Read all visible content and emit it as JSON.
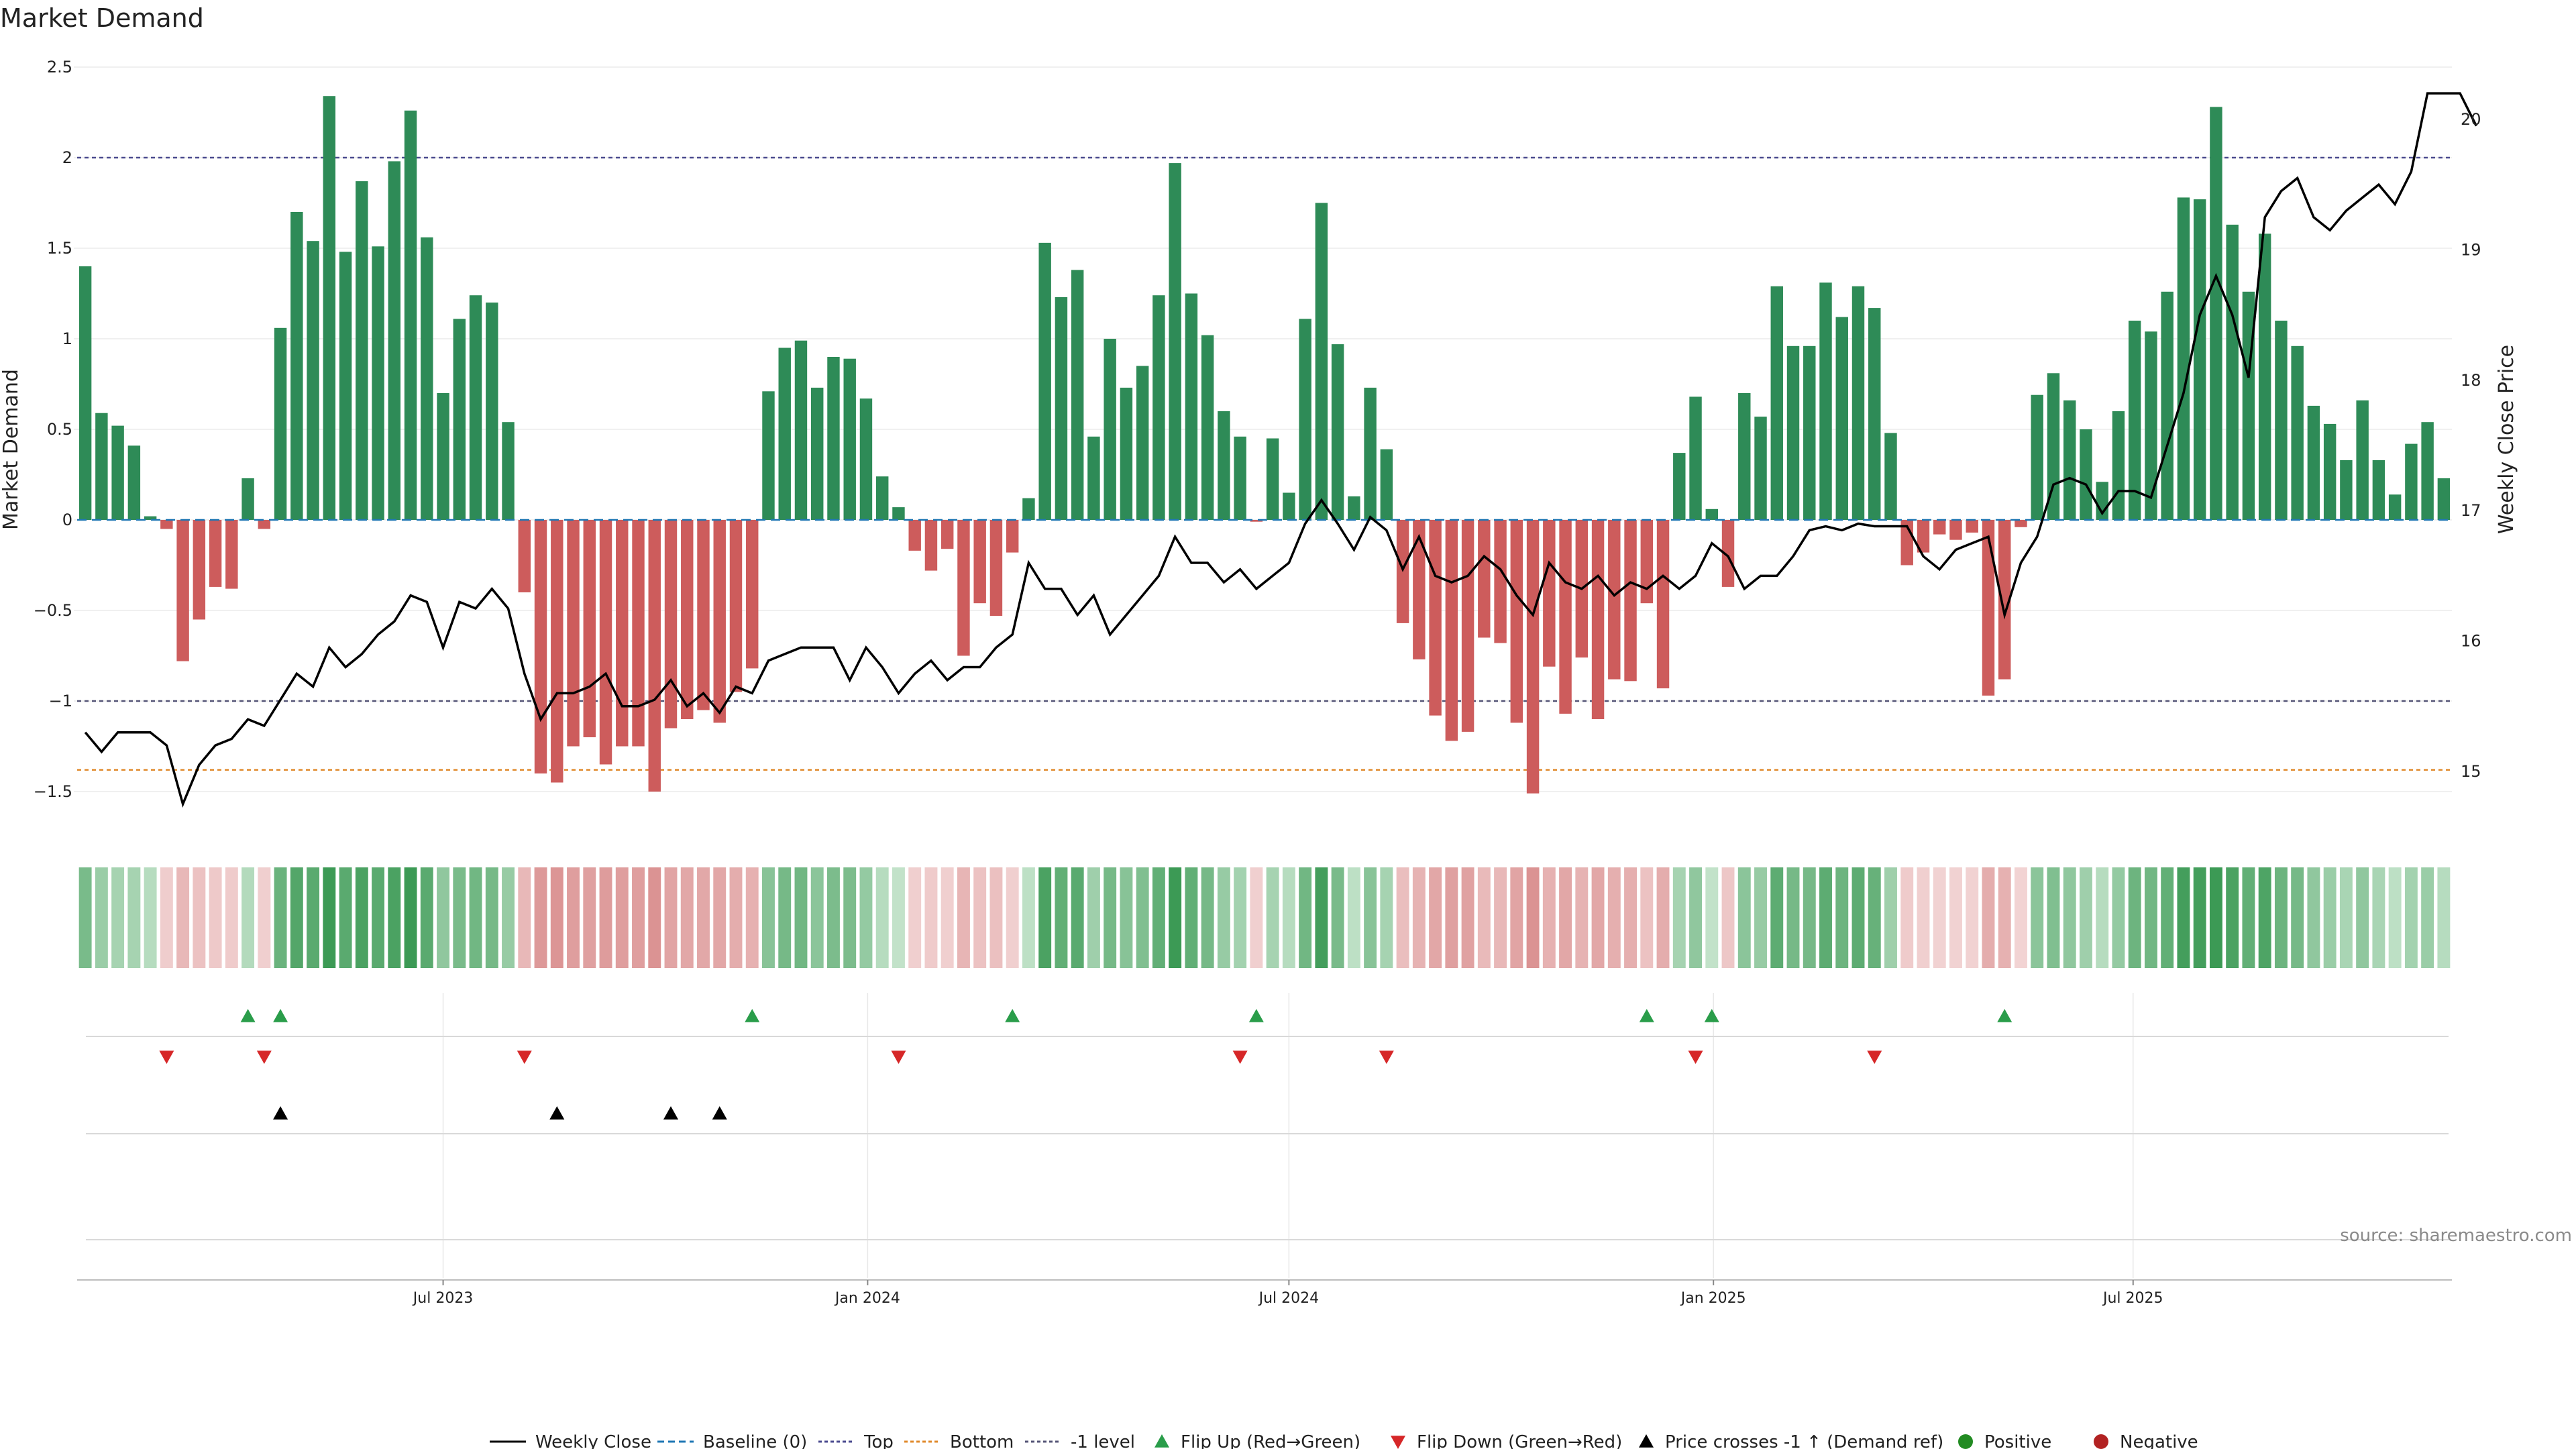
{
  "chart_data": {
    "type": "bar",
    "title": "Market Demand",
    "ylabel": "Market Demand",
    "y2label": "Weekly Close Price",
    "ylim": [
      -1.7,
      2.5
    ],
    "y2lim": [
      14.55,
      20.5
    ],
    "yticks": [
      2.5,
      2,
      1.5,
      1,
      0.5,
      0,
      -0.5,
      -1,
      -1.5
    ],
    "ytick_labels": [
      "2.5",
      "2",
      "1.5",
      "1",
      "0.5",
      "0",
      "−0.5",
      "−1",
      "−1.5"
    ],
    "y2ticks": [
      20,
      19,
      18,
      17,
      16,
      15
    ],
    "xticks": [
      {
        "label": "Jul 2023",
        "index": 22
      },
      {
        "label": "Jan 2024",
        "index": 48.1
      },
      {
        "label": "Jul 2024",
        "index": 74
      },
      {
        "label": "Jan 2025",
        "index": 100.1
      },
      {
        "label": "Jul 2025",
        "index": 125.9
      }
    ],
    "reference_lines": {
      "top": 2,
      "bottom": -1.38,
      "minus_one": -1,
      "baseline": 0
    },
    "colors": {
      "positive": "#2e8b57",
      "negative": "#cd5c5c",
      "close": "#000000",
      "top": "#4b4b8f",
      "bottom": "#e08a2c",
      "level": "#555577",
      "baseline": "#1f77b4",
      "flip_up": "#2a9d4a",
      "flip_down": "#d62728",
      "cross": "#000000"
    },
    "series": [
      {
        "name": "Market Demand",
        "values": [
          1.4,
          0.59,
          0.52,
          0.41,
          0.02,
          -0.05,
          -0.78,
          -0.55,
          -0.37,
          -0.38,
          0.23,
          -0.05,
          1.06,
          1.7,
          1.54,
          2.34,
          1.48,
          1.87,
          1.51,
          1.98,
          2.26,
          1.56,
          0.7,
          1.11,
          1.24,
          1.2,
          0.54,
          -0.4,
          -1.4,
          -1.45,
          -1.25,
          -1.2,
          -1.35,
          -1.25,
          -1.25,
          -1.5,
          -1.15,
          -1.1,
          -1.05,
          -1.12,
          -0.95,
          -0.82,
          0.71,
          0.95,
          0.99,
          0.73,
          0.9,
          0.89,
          0.67,
          0.24,
          0.07,
          -0.17,
          -0.28,
          -0.16,
          -0.75,
          -0.46,
          -0.53,
          -0.18,
          0.12,
          1.53,
          1.23,
          1.38,
          0.46,
          1.0,
          0.73,
          0.85,
          1.24,
          1.97,
          1.25,
          1.02,
          0.6,
          0.46,
          -0.01,
          0.45,
          0.15,
          1.11,
          1.75,
          0.97,
          0.13,
          0.73,
          0.39,
          -0.57,
          -0.77,
          -1.08,
          -1.22,
          -1.17,
          -0.65,
          -0.68,
          -1.12,
          -1.51,
          -0.81,
          -1.07,
          -0.76,
          -1.1,
          -0.88,
          -0.89,
          -0.46,
          -0.93,
          0.37,
          0.68,
          0.06,
          -0.37,
          0.7,
          0.57,
          1.29,
          0.96,
          0.96,
          1.31,
          1.12,
          1.29,
          1.17,
          0.48,
          -0.25,
          -0.18,
          -0.08,
          -0.11,
          -0.07,
          -0.97,
          -0.88,
          -0.04,
          0.69,
          0.81,
          0.66,
          0.5,
          0.21,
          0.6,
          1.1,
          1.04,
          1.26,
          1.78,
          1.77,
          2.28,
          1.63,
          1.26,
          1.58,
          1.1,
          0.96,
          0.63,
          0.53,
          0.33,
          0.66,
          0.33,
          0.14,
          0.42,
          0.54,
          0.23
        ]
      },
      {
        "name": "Weekly Close",
        "values": [
          15.3,
          15.15,
          15.3,
          15.3,
          15.3,
          15.2,
          14.75,
          15.05,
          15.2,
          15.25,
          15.4,
          15.35,
          15.55,
          15.75,
          15.65,
          15.95,
          15.8,
          15.9,
          16.05,
          16.15,
          16.35,
          16.3,
          15.95,
          16.3,
          16.25,
          16.4,
          16.25,
          15.75,
          15.4,
          15.6,
          15.6,
          15.65,
          15.75,
          15.5,
          15.5,
          15.55,
          15.7,
          15.5,
          15.6,
          15.45,
          15.65,
          15.6,
          15.85,
          15.9,
          15.95,
          15.95,
          15.95,
          15.7,
          15.95,
          15.8,
          15.6,
          15.75,
          15.85,
          15.7,
          15.8,
          15.8,
          15.95,
          16.05,
          16.6,
          16.4,
          16.4,
          16.2,
          16.35,
          16.05,
          16.2,
          16.35,
          16.5,
          16.8,
          16.6,
          16.6,
          16.45,
          16.55,
          16.4,
          16.5,
          16.6,
          16.9,
          17.08,
          16.9,
          16.7,
          16.95,
          16.85,
          16.55,
          16.8,
          16.5,
          16.45,
          16.5,
          16.65,
          16.55,
          16.35,
          16.2,
          16.6,
          16.45,
          16.4,
          16.5,
          16.35,
          16.45,
          16.4,
          16.5,
          16.4,
          16.5,
          16.75,
          16.65,
          16.4,
          16.5,
          16.5,
          16.65,
          16.85,
          16.88,
          16.85,
          16.9,
          16.88,
          16.88,
          16.88,
          16.65,
          16.55,
          16.7,
          16.75,
          16.8,
          16.2,
          16.6,
          16.8,
          17.2,
          17.25,
          17.2,
          16.98,
          17.15,
          17.15,
          17.1,
          17.5,
          17.9,
          18.5,
          18.8,
          18.5,
          18.02,
          19.25,
          19.45,
          19.55,
          19.25,
          19.15,
          19.3,
          19.4,
          19.5,
          19.35,
          19.6,
          20.2,
          20.2,
          20.2,
          19.95
        ]
      }
    ],
    "heat_strip": [
      0.6,
      0.38,
      0.3,
      0.3,
      0.2,
      0.18,
      0.42,
      0.3,
      0.22,
      0.2,
      0.22,
      0.15,
      0.7,
      0.85,
      0.8,
      1.0,
      0.8,
      0.9,
      0.8,
      0.9,
      1.0,
      0.8,
      0.45,
      0.6,
      0.65,
      0.62,
      0.4,
      0.42,
      0.78,
      0.82,
      0.72,
      0.7,
      0.75,
      0.72,
      0.72,
      0.85,
      0.65,
      0.62,
      0.6,
      0.62,
      0.55,
      0.5,
      0.5,
      0.62,
      0.65,
      0.48,
      0.58,
      0.58,
      0.42,
      0.2,
      0.12,
      0.15,
      0.2,
      0.15,
      0.45,
      0.3,
      0.32,
      0.15,
      0.15,
      0.9,
      0.75,
      0.8,
      0.35,
      0.62,
      0.5,
      0.55,
      0.75,
      1.0,
      0.75,
      0.62,
      0.4,
      0.32,
      0.15,
      0.3,
      0.2,
      0.65,
      0.95,
      0.6,
      0.15,
      0.5,
      0.3,
      0.35,
      0.48,
      0.62,
      0.7,
      0.68,
      0.4,
      0.42,
      0.65,
      0.85,
      0.5,
      0.62,
      0.48,
      0.62,
      0.52,
      0.52,
      0.3,
      0.55,
      0.3,
      0.45,
      0.12,
      0.25,
      0.48,
      0.4,
      0.78,
      0.62,
      0.62,
      0.78,
      0.68,
      0.78,
      0.72,
      0.35,
      0.2,
      0.15,
      0.12,
      0.12,
      0.12,
      0.55,
      0.5,
      0.1,
      0.48,
      0.55,
      0.45,
      0.35,
      0.2,
      0.42,
      0.68,
      0.65,
      0.75,
      0.95,
      0.95,
      1.0,
      0.9,
      0.75,
      0.88,
      0.68,
      0.62,
      0.45,
      0.38,
      0.28,
      0.45,
      0.28,
      0.15,
      0.32,
      0.38,
      0.2
    ],
    "events": {
      "flip_up": [
        10,
        12,
        41,
        57,
        72,
        96,
        100,
        118
      ],
      "flip_down": [
        5,
        11,
        27,
        50,
        71,
        80,
        99,
        110
      ],
      "price_cross": [
        12,
        29,
        36,
        39
      ]
    },
    "source": "source: sharemaestro.com",
    "legend": [
      "Weekly Close",
      "Baseline (0)",
      "Top",
      "Bottom",
      "-1 level",
      "Flip Up (Red→Green)",
      "Flip Down (Green→Red)",
      "Price crosses -1 ↑ (Demand ref)",
      "Positive",
      "Negative"
    ],
    "legend_position": "bottom-center"
  }
}
